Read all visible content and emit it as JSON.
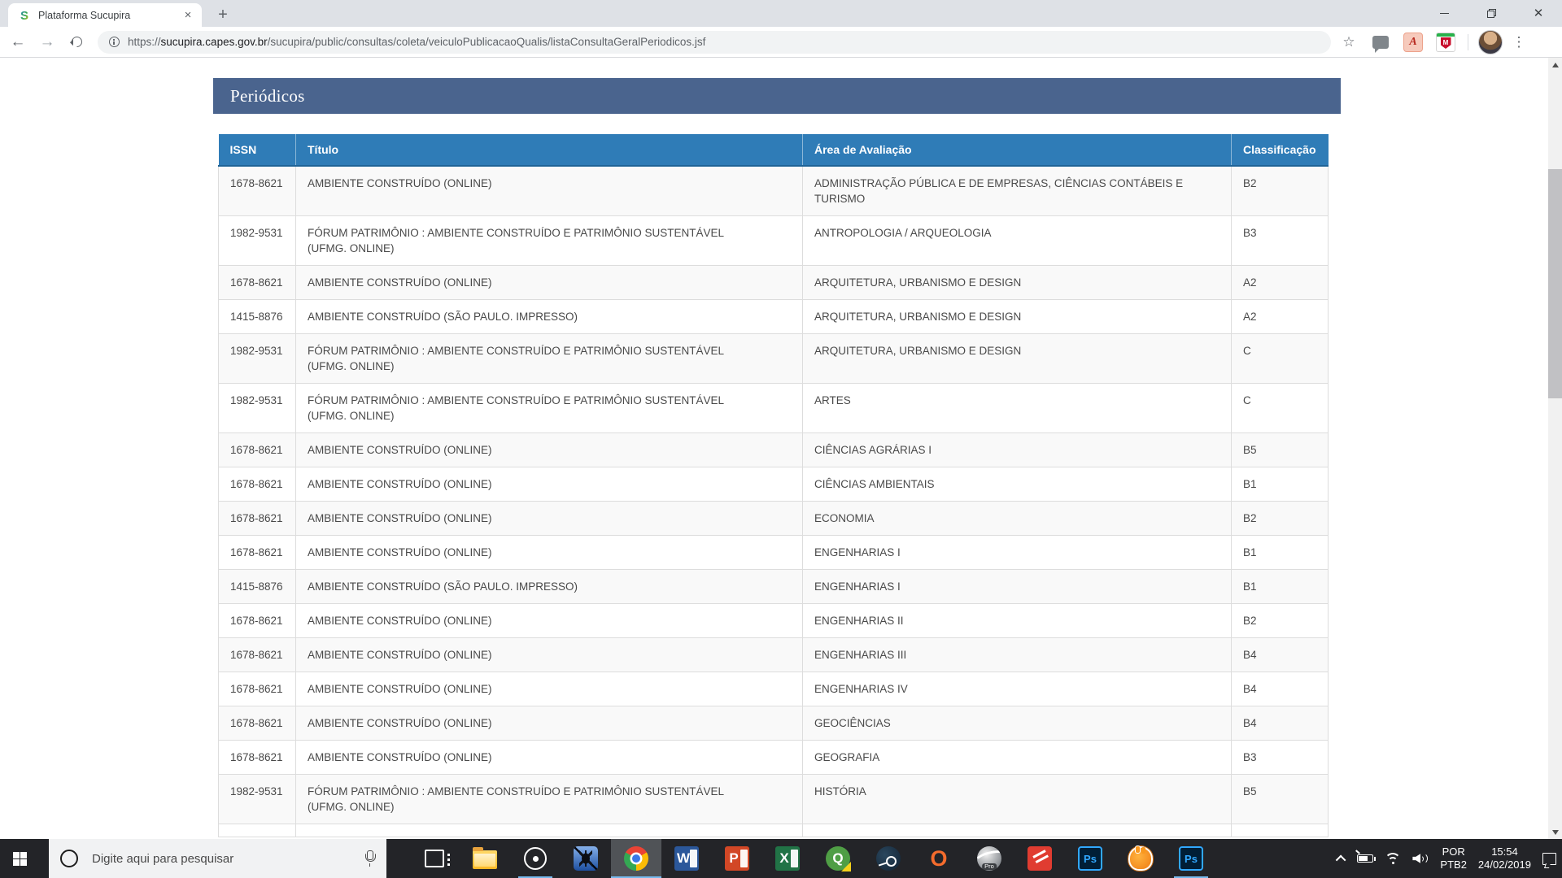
{
  "browser": {
    "tab": {
      "title": "Plataforma Sucupira",
      "favicon_letter": "S"
    },
    "url_scheme": "https://",
    "url_host": "sucupira.capes.gov.br",
    "url_path": "/sucupira/public/consultas/coleta/veiculoPublicacaoQualis/listaConsultaGeralPeriodicos.jsf",
    "extensions": {
      "mcafee_letter": "M",
      "acrobat_glyph": "A"
    }
  },
  "page": {
    "panel_title": "Periódicos",
    "table": {
      "columns": [
        "ISSN",
        "Título",
        "Área de Avaliação",
        "Classificação"
      ],
      "rows": [
        {
          "issn": "1678-8621",
          "titulo": "AMBIENTE CONSTRUÍDO (ONLINE)",
          "area": "ADMINISTRAÇÃO PÚBLICA E DE EMPRESAS, CIÊNCIAS CONTÁBEIS E TURISMO",
          "classificacao": "B2"
        },
        {
          "issn": "1982-9531",
          "titulo": "FÓRUM PATRIMÔNIO : AMBIENTE CONSTRUÍDO E PATRIMÔNIO SUSTENTÁVEL (UFMG. ONLINE)",
          "area": "ANTROPOLOGIA / ARQUEOLOGIA",
          "classificacao": "B3"
        },
        {
          "issn": "1678-8621",
          "titulo": "AMBIENTE CONSTRUÍDO (ONLINE)",
          "area": "ARQUITETURA, URBANISMO E DESIGN",
          "classificacao": "A2"
        },
        {
          "issn": "1415-8876",
          "titulo": "AMBIENTE CONSTRUÍDO (SÃO PAULO. IMPRESSO)",
          "area": "ARQUITETURA, URBANISMO E DESIGN",
          "classificacao": "A2"
        },
        {
          "issn": "1982-9531",
          "titulo": "FÓRUM PATRIMÔNIO : AMBIENTE CONSTRUÍDO E PATRIMÔNIO SUSTENTÁVEL (UFMG. ONLINE)",
          "area": "ARQUITETURA, URBANISMO E DESIGN",
          "classificacao": "C"
        },
        {
          "issn": "1982-9531",
          "titulo": "FÓRUM PATRIMÔNIO : AMBIENTE CONSTRUÍDO E PATRIMÔNIO SUSTENTÁVEL (UFMG. ONLINE)",
          "area": "ARTES",
          "classificacao": "C"
        },
        {
          "issn": "1678-8621",
          "titulo": "AMBIENTE CONSTRUÍDO (ONLINE)",
          "area": "CIÊNCIAS AGRÁRIAS I",
          "classificacao": "B5"
        },
        {
          "issn": "1678-8621",
          "titulo": "AMBIENTE CONSTRUÍDO (ONLINE)",
          "area": "CIÊNCIAS AMBIENTAIS",
          "classificacao": "B1"
        },
        {
          "issn": "1678-8621",
          "titulo": "AMBIENTE CONSTRUÍDO (ONLINE)",
          "area": "ECONOMIA",
          "classificacao": "B2"
        },
        {
          "issn": "1678-8621",
          "titulo": "AMBIENTE CONSTRUÍDO (ONLINE)",
          "area": "ENGENHARIAS I",
          "classificacao": "B1"
        },
        {
          "issn": "1415-8876",
          "titulo": "AMBIENTE CONSTRUÍDO (SÃO PAULO. IMPRESSO)",
          "area": "ENGENHARIAS I",
          "classificacao": "B1"
        },
        {
          "issn": "1678-8621",
          "titulo": "AMBIENTE CONSTRUÍDO (ONLINE)",
          "area": "ENGENHARIAS II",
          "classificacao": "B2"
        },
        {
          "issn": "1678-8621",
          "titulo": "AMBIENTE CONSTRUÍDO (ONLINE)",
          "area": "ENGENHARIAS III",
          "classificacao": "B4"
        },
        {
          "issn": "1678-8621",
          "titulo": "AMBIENTE CONSTRUÍDO (ONLINE)",
          "area": "ENGENHARIAS IV",
          "classificacao": "B4"
        },
        {
          "issn": "1678-8621",
          "titulo": "AMBIENTE CONSTRUÍDO (ONLINE)",
          "area": "GEOCIÊNCIAS",
          "classificacao": "B4"
        },
        {
          "issn": "1678-8621",
          "titulo": "AMBIENTE CONSTRUÍDO (ONLINE)",
          "area": "GEOGRAFIA",
          "classificacao": "B3"
        },
        {
          "issn": "1982-9531",
          "titulo": "FÓRUM PATRIMÔNIO : AMBIENTE CONSTRUÍDO E PATRIMÔNIO SUSTENTÁVEL (UFMG. ONLINE)",
          "area": "HISTÓRIA",
          "classificacao": "B5"
        }
      ]
    }
  },
  "taskbar": {
    "search_placeholder": "Digite aqui para pesquisar",
    "apps": [
      {
        "name": "task-view"
      },
      {
        "name": "file-explorer"
      },
      {
        "name": "music-app",
        "running": true
      },
      {
        "name": "spider-app"
      },
      {
        "name": "chrome",
        "running": true,
        "active": true
      },
      {
        "name": "word",
        "glyph": "W"
      },
      {
        "name": "powerpoint",
        "glyph": "P"
      },
      {
        "name": "excel",
        "glyph": "X"
      },
      {
        "name": "qgis",
        "glyph": "Q"
      },
      {
        "name": "steam"
      },
      {
        "name": "origin",
        "glyph": "O"
      },
      {
        "name": "google-earth-pro",
        "glyph": "Pro"
      },
      {
        "name": "sketchup"
      },
      {
        "name": "photoshop",
        "glyph": "Ps"
      },
      {
        "name": "hand-app"
      },
      {
        "name": "photoshop-2",
        "glyph": "Ps",
        "running": true
      }
    ],
    "tray": {
      "language_line1": "POR",
      "language_line2": "PTB2",
      "time": "15:54",
      "date": "24/02/2019"
    }
  }
}
